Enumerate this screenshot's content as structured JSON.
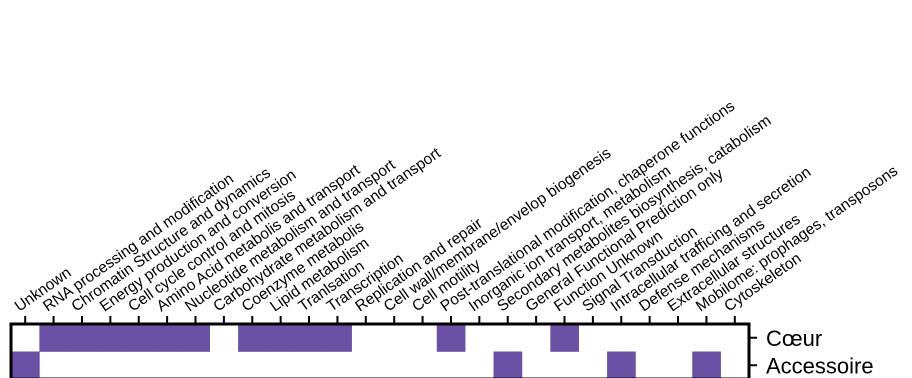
{
  "chart_data": {
    "type": "heatmap",
    "title": "",
    "xlabel": "",
    "ylabel": "",
    "categories": [
      "Unknown",
      "RNA processing and modification",
      "Chromatin Structure and dynamics",
      "Energy production and conversion",
      "Cell cycle control and mitosis",
      "Amino Acid metabolis and transport",
      "Nucleotide metabolism and transport",
      "Carbohydrate metabolism and transport",
      "Coenzyme metabolis",
      "Lipid metabolism",
      "Tranlsation",
      "Transcription",
      "Replication and repair",
      "Cell wall/membrane/envelop biogenesis",
      "Cell motility",
      "Post-translational modification, chaperone functions",
      "Inorganic ion transport, metabolism",
      "Secondary metabolites biosynthesis, catabolism",
      "General Functional Prediction only",
      "Function Unknown",
      "Signal Transduction",
      "Intracellular trafficing and secretion",
      "Defense mechanisms",
      "Extracellular structures",
      "Mobilome: prophages, transposons",
      "Cytoskeleton"
    ],
    "rows": [
      "Cœur",
      "Accessoire"
    ],
    "values": [
      [
        0,
        1,
        1,
        1,
        1,
        1,
        1,
        0,
        1,
        1,
        1,
        1,
        0,
        0,
        0,
        1,
        0,
        0,
        0,
        1,
        0,
        0,
        0,
        0,
        0,
        0
      ],
      [
        1,
        0,
        0,
        0,
        0,
        0,
        0,
        0,
        0,
        0,
        0,
        0,
        0,
        0,
        0,
        0,
        0,
        1,
        0,
        0,
        0,
        1,
        0,
        0,
        1,
        0
      ]
    ],
    "fill_color": "#6a51a3",
    "empty_color": "#ffffff",
    "grid": false,
    "legend": "none"
  }
}
